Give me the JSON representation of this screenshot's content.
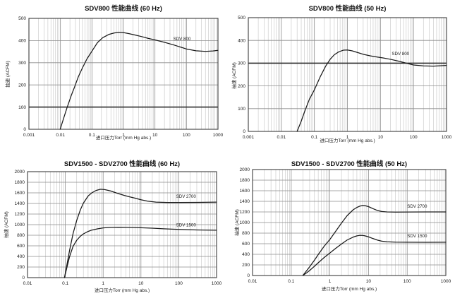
{
  "page": {
    "background": "#ffffff"
  },
  "colors": {
    "curve": "#1a1a1a",
    "grid_major": "#8d8d8d",
    "grid_minor": "#c4c4c4",
    "border": "#3c3c3c",
    "highlight_line": "#2b2b2b",
    "text": "#1a1a1a"
  },
  "chart_data": [
    {
      "id": "sdv800-60hz",
      "type": "line",
      "title": "SDV800 性能曲线 (60 Hz)",
      "xlabel": "进口压力Torr (mm Hg abs.)",
      "ylabel": "抽速 (ACFM)",
      "xscale": "log",
      "xlim": [
        0.001,
        1000
      ],
      "ylim": [
        0,
        500
      ],
      "xticks": [
        "0.001",
        "0.01",
        "0.1",
        "1",
        "10",
        "100",
        "1000"
      ],
      "yticks": [
        "0",
        "100",
        "200",
        "300",
        "400",
        "500"
      ],
      "grid": "on",
      "legend_position": "inline-label",
      "highlight_y": 100,
      "series": [
        {
          "name": "SDV 800",
          "label_at": [
            38,
            402
          ],
          "points": [
            [
              0.0098,
              0
            ],
            [
              0.013,
              55
            ],
            [
              0.016,
              95
            ],
            [
              0.022,
              152
            ],
            [
              0.028,
              190
            ],
            [
              0.037,
              237
            ],
            [
              0.05,
              277
            ],
            [
              0.07,
              318
            ],
            [
              0.1,
              352
            ],
            [
              0.15,
              391
            ],
            [
              0.22,
              413
            ],
            [
              0.35,
              428
            ],
            [
              0.5,
              434
            ],
            [
              0.7,
              437
            ],
            [
              1,
              436
            ],
            [
              1.5,
              431
            ],
            [
              2.5,
              424
            ],
            [
              4,
              417
            ],
            [
              6,
              410
            ],
            [
              10,
              403
            ],
            [
              20,
              392
            ],
            [
              40,
              380
            ],
            [
              70,
              369
            ],
            [
              100,
              362
            ],
            [
              200,
              354
            ],
            [
              400,
              351
            ],
            [
              700,
              353
            ],
            [
              1000,
              356
            ]
          ]
        }
      ]
    },
    {
      "id": "sdv800-50hz",
      "type": "line",
      "title": "SDV800 性能曲线 (50 Hz)",
      "xlabel": "进口压力Torr (mm Hg abs.)",
      "ylabel": "抽速 (ACFM)",
      "xscale": "log",
      "xlim": [
        0.001,
        1000
      ],
      "ylim": [
        0,
        500
      ],
      "xticks": [
        "0.001",
        "0.01",
        "0.1",
        "1",
        "10",
        "100",
        "1000"
      ],
      "yticks": [
        "0",
        "100",
        "200",
        "300",
        "400",
        "500"
      ],
      "grid": "on",
      "legend_position": "inline-label",
      "highlight_y": 300,
      "series": [
        {
          "name": "SDV 800",
          "label_at": [
            22,
            336
          ],
          "points": [
            [
              0.03,
              0
            ],
            [
              0.04,
              45
            ],
            [
              0.05,
              85
            ],
            [
              0.07,
              140
            ],
            [
              0.1,
              183
            ],
            [
              0.15,
              240
            ],
            [
              0.22,
              287
            ],
            [
              0.3,
              317
            ],
            [
              0.4,
              337
            ],
            [
              0.55,
              350
            ],
            [
              0.75,
              357
            ],
            [
              1,
              358
            ],
            [
              1.4,
              354
            ],
            [
              2,
              347
            ],
            [
              3,
              339
            ],
            [
              5,
              332
            ],
            [
              8,
              327
            ],
            [
              12,
              323
            ],
            [
              20,
              317
            ],
            [
              35,
              309
            ],
            [
              60,
              300
            ],
            [
              100,
              292
            ],
            [
              200,
              288
            ],
            [
              400,
              287
            ],
            [
              700,
              289
            ],
            [
              1000,
              290
            ]
          ]
        }
      ]
    },
    {
      "id": "sdv1500-sdv2700-60hz",
      "type": "line",
      "title": "SDV1500 - SDV2700 性能曲线 (60 Hz)",
      "xlabel": "进口压力Torr (mm Hg abs.)",
      "ylabel": "抽速 (ACFM)",
      "xscale": "log",
      "xlim": [
        0.01,
        1000
      ],
      "ylim": [
        0,
        2000
      ],
      "xticks": [
        "0.01",
        "0.1",
        "1",
        "10",
        "100",
        "1000"
      ],
      "yticks": [
        "0",
        "200",
        "400",
        "600",
        "800",
        "1000",
        "1200",
        "1400",
        "1600",
        "1800",
        "2000"
      ],
      "grid": "on",
      "legend_position": "inline-label",
      "highlight_y": null,
      "series": [
        {
          "name": "SDV 2700",
          "label_at": [
            85,
            1505
          ],
          "points": [
            [
              0.095,
              0
            ],
            [
              0.11,
              240
            ],
            [
              0.13,
              520
            ],
            [
              0.16,
              830
            ],
            [
              0.2,
              1080
            ],
            [
              0.25,
              1280
            ],
            [
              0.3,
              1405
            ],
            [
              0.4,
              1540
            ],
            [
              0.5,
              1600
            ],
            [
              0.65,
              1645
            ],
            [
              0.85,
              1668
            ],
            [
              1.1,
              1662
            ],
            [
              1.6,
              1635
            ],
            [
              2.2,
              1600
            ],
            [
              3.5,
              1555
            ],
            [
              5,
              1525
            ],
            [
              7,
              1500
            ],
            [
              10,
              1470
            ],
            [
              15,
              1443
            ],
            [
              25,
              1425
            ],
            [
              50,
              1418
            ],
            [
              100,
              1418
            ],
            [
              300,
              1420
            ],
            [
              1000,
              1425
            ]
          ]
        },
        {
          "name": "SDV 1500",
          "label_at": [
            85,
            970
          ],
          "points": [
            [
              0.095,
              0
            ],
            [
              0.11,
              190
            ],
            [
              0.13,
              400
            ],
            [
              0.16,
              590
            ],
            [
              0.2,
              705
            ],
            [
              0.25,
              782
            ],
            [
              0.3,
              825
            ],
            [
              0.4,
              872
            ],
            [
              0.5,
              897
            ],
            [
              0.7,
              920
            ],
            [
              1,
              938
            ],
            [
              1.5,
              948
            ],
            [
              2.5,
              952
            ],
            [
              4,
              950
            ],
            [
              6,
              947
            ],
            [
              10,
              942
            ],
            [
              20,
              933
            ],
            [
              40,
              922
            ],
            [
              100,
              910
            ],
            [
              300,
              900
            ],
            [
              1000,
              895
            ]
          ]
        }
      ]
    },
    {
      "id": "sdv1500-sdv2700-50hz",
      "type": "line",
      "title": "SDV1500 - SDV2700 性能曲线 (50 Hz)",
      "xlabel": "进口压力Torr (mm Hg abs.)",
      "ylabel": "抽速 (ACFM)",
      "xscale": "log",
      "xlim": [
        0.01,
        1000
      ],
      "ylim": [
        0,
        2000
      ],
      "xticks": [
        "0.01",
        "0.1",
        "1",
        "10",
        "100",
        "1000"
      ],
      "yticks": [
        "0",
        "200",
        "400",
        "600",
        "800",
        "1000",
        "1200",
        "1400",
        "1600",
        "1800",
        "2000"
      ],
      "grid": "on",
      "legend_position": "inline-label",
      "highlight_y": null,
      "series": [
        {
          "name": "SDV 2700",
          "label_at": [
            100,
            1282
          ],
          "points": [
            [
              0.2,
              0
            ],
            [
              0.25,
              90
            ],
            [
              0.3,
              165
            ],
            [
              0.4,
              290
            ],
            [
              0.5,
              395
            ],
            [
              0.7,
              545
            ],
            [
              1,
              680
            ],
            [
              1.4,
              830
            ],
            [
              2,
              990
            ],
            [
              2.8,
              1130
            ],
            [
              4,
              1240
            ],
            [
              5,
              1285
            ],
            [
              6,
              1310
            ],
            [
              7,
              1322
            ],
            [
              8,
              1320
            ],
            [
              10,
              1300
            ],
            [
              13,
              1262
            ],
            [
              17,
              1228
            ],
            [
              22,
              1208
            ],
            [
              30,
              1200
            ],
            [
              50,
              1197
            ],
            [
              100,
              1198
            ],
            [
              300,
              1200
            ],
            [
              1000,
              1200
            ]
          ]
        },
        {
          "name": "SDV 1500",
          "label_at": [
            100,
            718
          ],
          "points": [
            [
              0.2,
              0
            ],
            [
              0.25,
              50
            ],
            [
              0.3,
              95
            ],
            [
              0.4,
              175
            ],
            [
              0.5,
              240
            ],
            [
              0.7,
              335
            ],
            [
              1,
              425
            ],
            [
              1.4,
              510
            ],
            [
              2,
              595
            ],
            [
              2.8,
              670
            ],
            [
              4,
              725
            ],
            [
              5,
              748
            ],
            [
              6,
              758
            ],
            [
              7,
              757
            ],
            [
              8,
              750
            ],
            [
              10,
              730
            ],
            [
              13,
              698
            ],
            [
              17,
              668
            ],
            [
              22,
              648
            ],
            [
              30,
              636
            ],
            [
              50,
              630
            ],
            [
              100,
              628
            ],
            [
              300,
              627
            ],
            [
              1000,
              628
            ]
          ]
        }
      ]
    }
  ]
}
